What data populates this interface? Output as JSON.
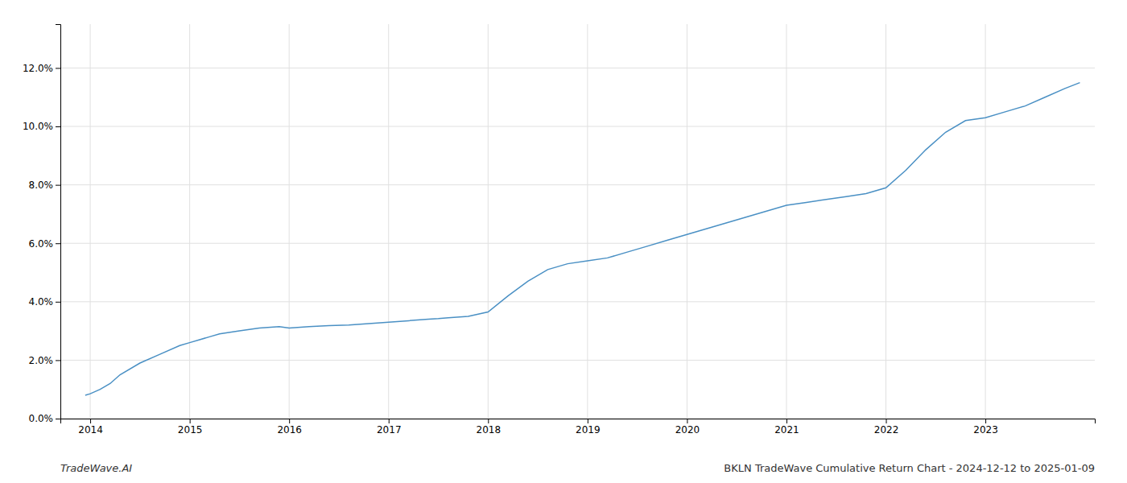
{
  "chart_data": {
    "type": "line",
    "x": [
      2013.95,
      2014.0,
      2014.1,
      2014.2,
      2014.3,
      2014.5,
      2014.7,
      2014.9,
      2015.0,
      2015.1,
      2015.2,
      2015.3,
      2015.5,
      2015.7,
      2015.9,
      2016.0,
      2016.2,
      2016.4,
      2016.6,
      2016.8,
      2017.0,
      2017.2,
      2017.4,
      2017.5,
      2017.6,
      2017.8,
      2018.0,
      2018.2,
      2018.4,
      2018.6,
      2018.8,
      2019.0,
      2019.2,
      2019.4,
      2019.6,
      2019.8,
      2020.0,
      2020.2,
      2020.4,
      2020.6,
      2020.8,
      2021.0,
      2021.2,
      2021.4,
      2021.6,
      2021.8,
      2022.0,
      2022.2,
      2022.4,
      2022.6,
      2022.8,
      2023.0,
      2023.2,
      2023.4,
      2023.6,
      2023.8,
      2023.95
    ],
    "values": [
      0.8,
      0.85,
      1.0,
      1.2,
      1.5,
      1.9,
      2.2,
      2.5,
      2.6,
      2.7,
      2.8,
      2.9,
      3.0,
      3.1,
      3.15,
      3.1,
      3.15,
      3.18,
      3.2,
      3.25,
      3.3,
      3.35,
      3.4,
      3.42,
      3.45,
      3.5,
      3.65,
      4.2,
      4.7,
      5.1,
      5.3,
      5.4,
      5.5,
      5.7,
      5.9,
      6.1,
      6.3,
      6.5,
      6.7,
      6.9,
      7.1,
      7.3,
      7.4,
      7.5,
      7.6,
      7.7,
      7.9,
      8.5,
      9.2,
      9.8,
      10.2,
      10.3,
      10.5,
      10.7,
      11.0,
      11.3,
      11.5
    ],
    "color": "#4a90c4",
    "xlim": [
      2013.7,
      2024.1
    ],
    "xticks": [
      2014,
      2015,
      2016,
      2017,
      2018,
      2019,
      2020,
      2021,
      2022,
      2023
    ],
    "ylim": [
      0,
      13.5
    ],
    "yticks": [
      {
        "value": 0.0,
        "label": "0.0%"
      },
      {
        "value": 2.0,
        "label": "2.0%"
      },
      {
        "value": 4.0,
        "label": "4.0%"
      },
      {
        "value": 6.0,
        "label": "6.0%"
      },
      {
        "value": 8.0,
        "label": "8.0%"
      },
      {
        "value": 10.0,
        "label": "10.0%"
      },
      {
        "value": 12.0,
        "label": "12.0%"
      }
    ],
    "grid": true,
    "annotations": [
      "TradeWave.AI",
      "BKLN TradeWave Cumulative Return Chart - 2024-12-12 to 2025-01-09"
    ]
  }
}
